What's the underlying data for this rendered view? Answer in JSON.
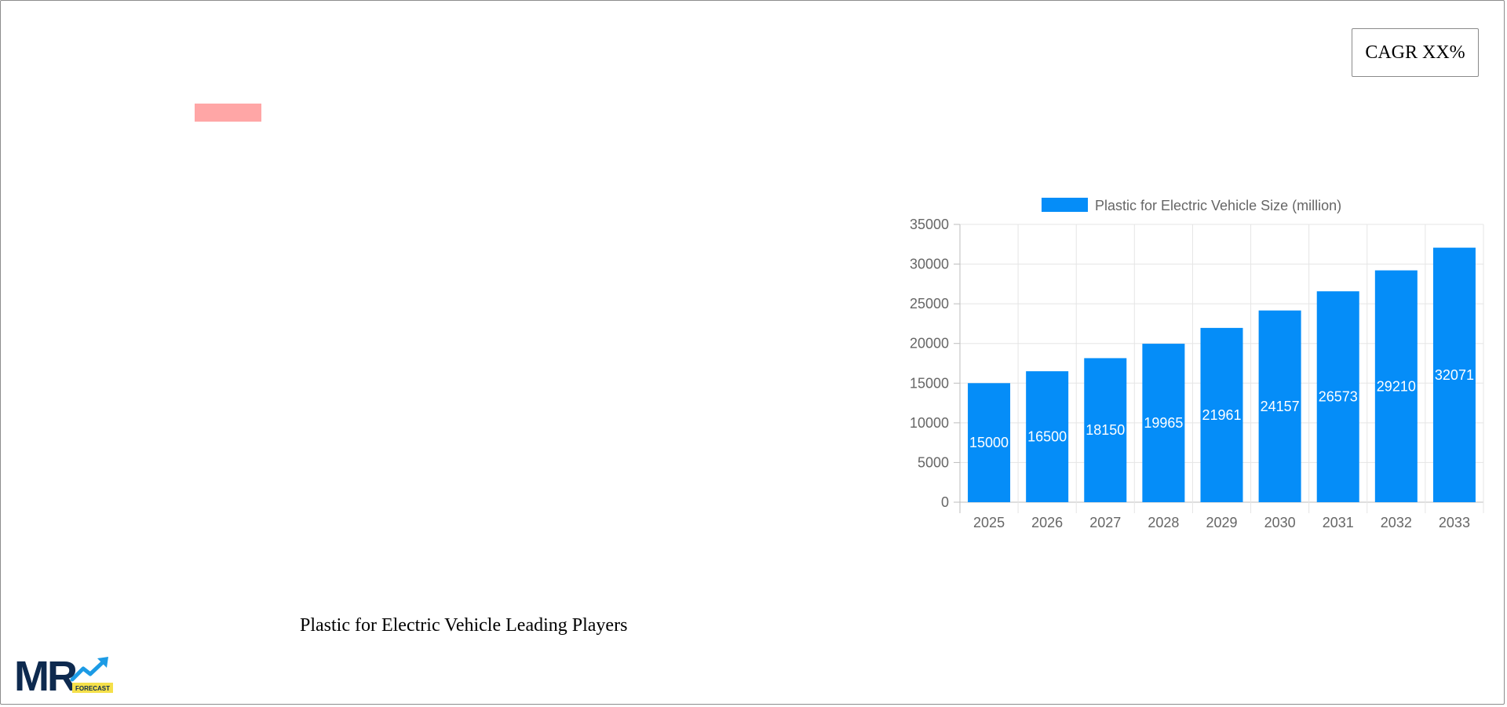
{
  "cagr": {
    "label": "CAGR XX%"
  },
  "leading_players": {
    "title": "Plastic for Electric Vehicle Leading Players"
  },
  "logo": {
    "text_main": "MR",
    "text_sub": "FORECAST"
  },
  "colors": {
    "bar": "#058DF8",
    "swatch": "#FFA6A6",
    "grid": "#e5e5e5",
    "axis": "#bdbdbd",
    "logo_navy": "#0E2A4F",
    "logo_blue": "#1C9BE5",
    "logo_yellow": "#F5E04A"
  },
  "chart_data": {
    "type": "bar",
    "categories": [
      "2025",
      "2026",
      "2027",
      "2028",
      "2029",
      "2030",
      "2031",
      "2032",
      "2033"
    ],
    "series": [
      {
        "name": "Plastic for Electric Vehicle Size (million)",
        "values": [
          15000,
          16500,
          18150,
          19965,
          21961,
          24157,
          26573,
          29210,
          32071
        ]
      }
    ],
    "yticks": [
      "0",
      "5000",
      "10000",
      "15000",
      "20000",
      "25000",
      "30000",
      "35000"
    ],
    "ylim": [
      0,
      35000
    ],
    "grid": true,
    "legend": "top",
    "data_labels": true
  }
}
